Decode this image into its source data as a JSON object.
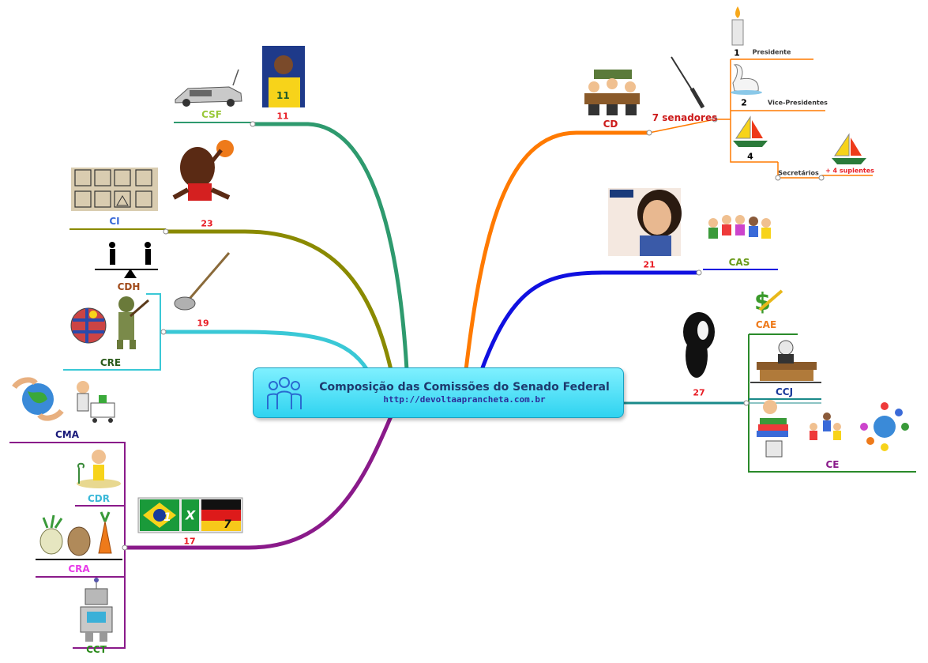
{
  "central": {
    "title": "Composição das Comissões do Senado Federal",
    "url": "http://devoltaaprancheta.com.br",
    "icon": "people-group-icon"
  },
  "committees": {
    "csf": {
      "name": "CSF",
      "count": "11",
      "color": "#2e9a6e"
    },
    "ci": {
      "name": "CI",
      "count": "23",
      "color": "#8a8a00"
    },
    "cdh": {
      "name": "CDH"
    },
    "cre": {
      "name": "CRE",
      "count": "19",
      "color": "#3ac8d6"
    },
    "cma": {
      "name": "CMA",
      "count": "17",
      "color": "#8a1a8a"
    },
    "cdr": {
      "name": "CDR"
    },
    "cra": {
      "name": "CRA"
    },
    "cct": {
      "name": "CCT"
    },
    "cd": {
      "name": "CD",
      "senators": "7 senadores",
      "color": "#ff7a00"
    },
    "cas": {
      "name": "CAS",
      "count": "21",
      "color": "#1010e0"
    },
    "cae": {
      "name": "CAE",
      "count": "27",
      "color": "#1a8a8a"
    },
    "ccj": {
      "name": "CCJ"
    },
    "ce": {
      "name": "CE"
    }
  },
  "cd_roles": [
    {
      "number": "1",
      "role": "Presidente"
    },
    {
      "number": "2",
      "role": "Vice-Presidentes"
    },
    {
      "number": "4",
      "role": "Secretários"
    }
  ],
  "cd_extra": "+ 4 suplentes",
  "flags_score": {
    "left": "1",
    "right": "7",
    "separator": "X"
  },
  "jersey_number": "11",
  "colors": {
    "csf": "#2e9a6e",
    "ci": "#8a8a00",
    "cre": "#3ac8d6",
    "cma": "#8a1a8a",
    "cd": "#ff7a00",
    "cas": "#1010e0",
    "cae": "#1a8a8a"
  }
}
